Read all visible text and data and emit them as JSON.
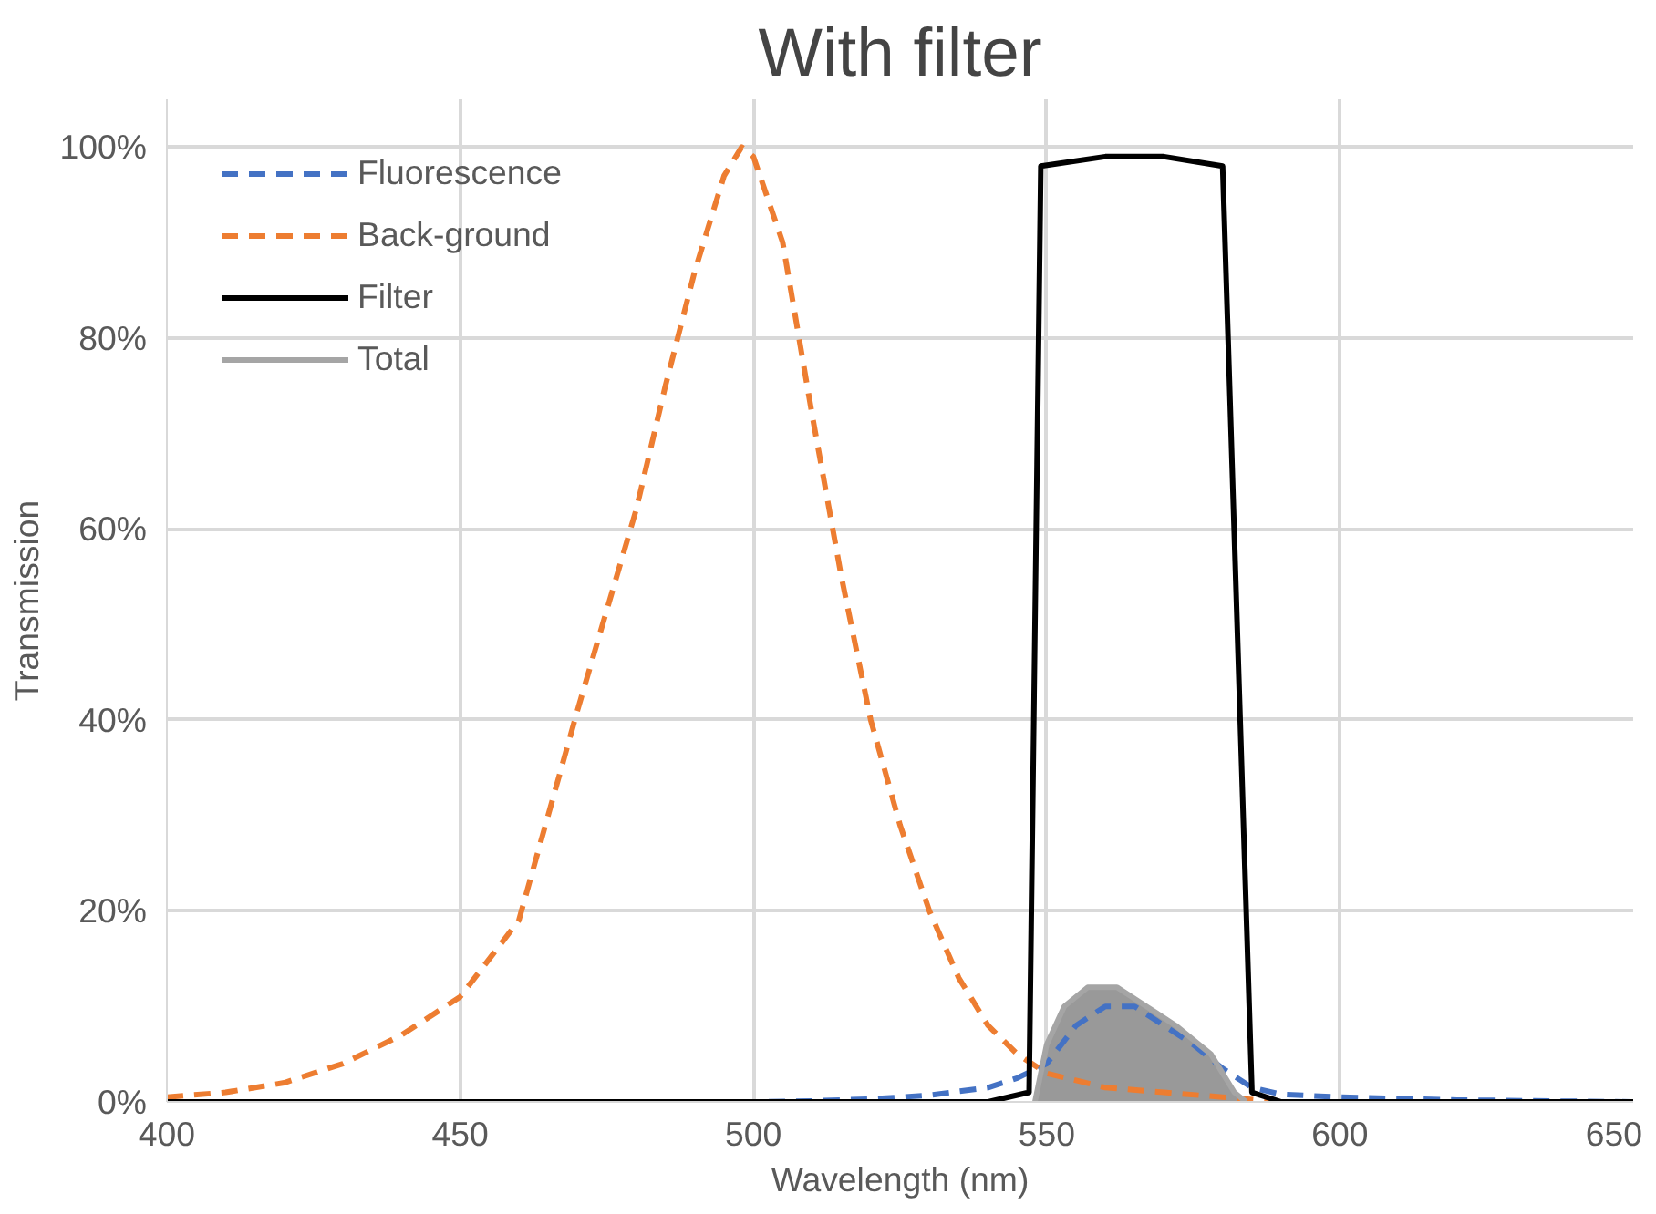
{
  "chart_data": {
    "type": "line",
    "title": "With filter",
    "xlabel": "Wavelength (nm)",
    "ylabel": "Transmission",
    "xlim": [
      400,
      650
    ],
    "xticks": [
      400,
      450,
      500,
      550,
      600,
      650
    ],
    "ylim": [
      0,
      105
    ],
    "yticks": [
      {
        "value": 0,
        "label": "0%"
      },
      {
        "value": 20,
        "label": "20%"
      },
      {
        "value": 40,
        "label": "40%"
      },
      {
        "value": 60,
        "label": "60%"
      },
      {
        "value": 80,
        "label": "80%"
      },
      {
        "value": 100,
        "label": "100%"
      }
    ],
    "grid": true,
    "legend": "top left",
    "series": [
      {
        "name": "Fluorescence",
        "color": "#4472c4",
        "line_style": "dashed",
        "x": [
          400,
          500,
          510,
          520,
          530,
          540,
          545,
          550,
          555,
          560,
          565,
          570,
          575,
          580,
          585,
          590,
          600,
          620,
          650
        ],
        "values": [
          0,
          0,
          0.1,
          0.3,
          0.7,
          1.5,
          2.5,
          4,
          8,
          10,
          10,
          8,
          6,
          3.5,
          1.5,
          0.8,
          0.5,
          0.2,
          0
        ]
      },
      {
        "name": "Back-ground",
        "color": "#ed7d31",
        "line_style": "dashed",
        "x": [
          400,
          410,
          420,
          430,
          440,
          450,
          460,
          470,
          480,
          485,
          490,
          495,
          498,
          500,
          505,
          510,
          515,
          520,
          525,
          530,
          535,
          540,
          545,
          550,
          560,
          570,
          580,
          590,
          650
        ],
        "values": [
          0.5,
          1,
          2,
          4,
          7,
          11,
          19,
          41,
          62,
          75,
          87,
          97,
          100,
          99,
          90,
          72,
          55,
          40,
          29,
          20,
          13,
          8,
          5,
          3,
          1.5,
          1,
          0.5,
          0,
          0
        ]
      },
      {
        "name": "Filter",
        "color": "#000000",
        "line_style": "solid",
        "x": [
          400,
          540,
          547,
          549,
          560,
          570,
          580,
          585,
          590,
          650
        ],
        "values": [
          0,
          0,
          1,
          98,
          99,
          99,
          98,
          1,
          0,
          0
        ]
      },
      {
        "name": "Total",
        "type": "area",
        "color": "#a5a5a5",
        "line_style": "solid",
        "x": [
          548,
          550,
          553,
          557,
          562,
          567,
          572,
          578,
          582,
          584
        ],
        "values": [
          0,
          6,
          10,
          12,
          12,
          10,
          8,
          5,
          1,
          0
        ]
      }
    ]
  }
}
